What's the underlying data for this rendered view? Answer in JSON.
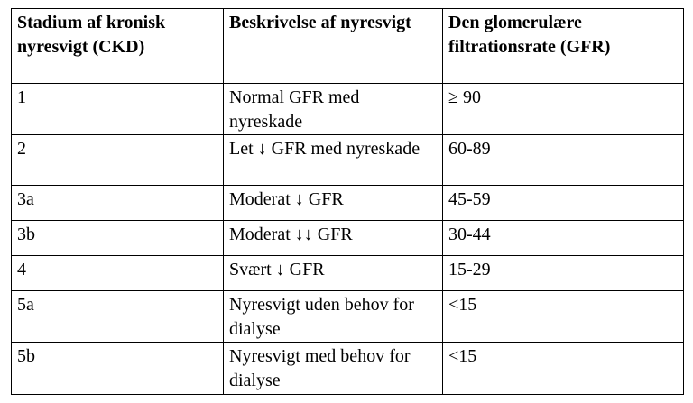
{
  "table": {
    "headers": [
      "Stadium af kronisk nyresvigt (CKD)",
      "Beskrivelse af nyresvigt",
      "Den glomerulære filtrationsrate (GFR)"
    ],
    "rows": [
      {
        "stage": "1",
        "description": "Normal GFR med nyreskade",
        "gfr": "≥ 90"
      },
      {
        "stage": "2",
        "description": "Let ↓ GFR med nyreskade",
        "gfr": "60-89"
      },
      {
        "stage": "3a",
        "description": "Moderat ↓ GFR",
        "gfr": "45-59"
      },
      {
        "stage": "3b",
        "description": "Moderat ↓↓ GFR",
        "gfr": "30-44"
      },
      {
        "stage": "4",
        "description": "Svært ↓ GFR",
        "gfr": "15-29"
      },
      {
        "stage": "5a",
        "description": "Nyresvigt uden behov for dialyse",
        "gfr": "<15"
      },
      {
        "stage": "5b",
        "description": "Nyresvigt med behov for dialyse",
        "gfr": "<15"
      }
    ]
  }
}
